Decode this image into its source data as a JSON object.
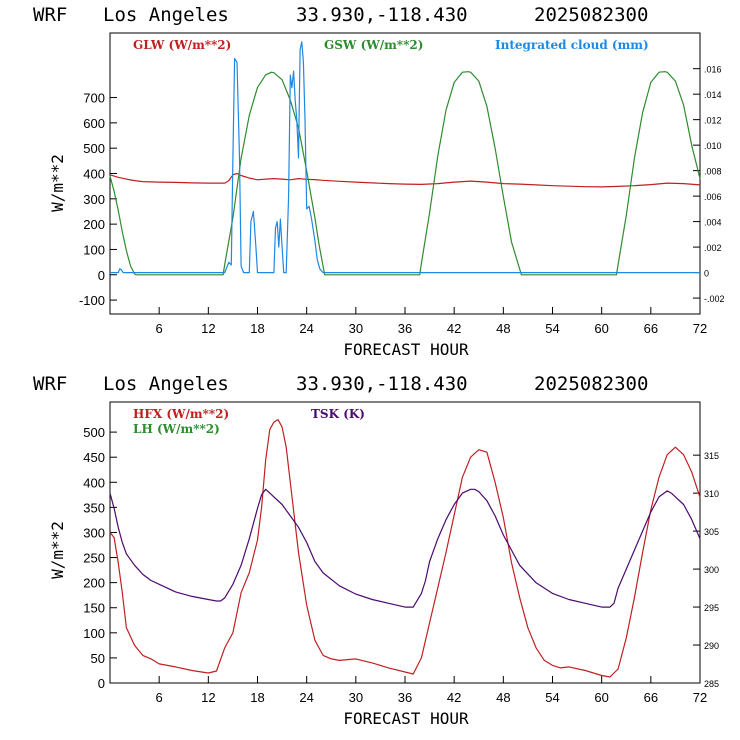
{
  "top": {
    "title_model": "WRF",
    "title_site": "Los Angeles",
    "title_coords": "33.930,-118.430",
    "title_date": "2025082300"
  },
  "bottom": {
    "title_model": "WRF",
    "title_site": "Los Angeles",
    "title_coords": "33.930,-118.430",
    "title_date": "2025082300"
  },
  "chart_data": [
    {
      "type": "line",
      "xlabel": "FORECAST HOUR",
      "ylabel": "W/m**2",
      "xlim": [
        0,
        72
      ],
      "ylim": [
        -155,
        955
      ],
      "xticks": [
        6,
        12,
        18,
        24,
        30,
        36,
        42,
        48,
        54,
        60,
        66,
        72
      ],
      "yticks": [
        -100,
        0,
        100,
        200,
        300,
        400,
        500,
        600,
        700
      ],
      "y2lim": [
        -0.00325,
        0.0188
      ],
      "y2ticks": [
        ".016",
        ".014",
        ".012",
        ".010",
        ".008",
        ".006",
        ".004",
        ".002",
        "0",
        "-.002"
      ],
      "y2tick_values": [
        0.016,
        0.014,
        0.012,
        0.01,
        0.008,
        0.006,
        0.004,
        0.002,
        0,
        -0.002
      ],
      "grid": false,
      "legend": "top",
      "series": [
        {
          "name": "GLW (W/m**2)",
          "color": "#c02020",
          "axis": "left",
          "x": [
            0,
            1,
            2,
            3,
            4,
            6,
            8,
            10,
            12,
            14,
            14.5,
            15,
            15.5,
            16,
            17,
            18,
            19,
            20,
            21,
            22,
            23,
            24,
            25,
            26,
            28,
            30,
            32,
            34,
            36,
            38,
            40,
            42,
            44,
            46,
            48,
            50,
            52,
            54,
            56,
            58,
            60,
            62,
            64,
            66,
            68,
            70,
            72
          ],
          "y": [
            395,
            385,
            378,
            372,
            368,
            366,
            365,
            363,
            362,
            362,
            372,
            395,
            400,
            392,
            382,
            375,
            378,
            380,
            378,
            375,
            380,
            377,
            376,
            373,
            369,
            366,
            363,
            360,
            358,
            357,
            360,
            366,
            370,
            366,
            360,
            358,
            355,
            352,
            350,
            348,
            347,
            349,
            352,
            356,
            362,
            360,
            355
          ]
        },
        {
          "name": "GSW (W/m**2)",
          "color": "#2e8b2e",
          "axis": "left",
          "x": [
            0,
            0.5,
            1,
            1.5,
            2,
            2.5,
            3,
            3.2,
            13.8,
            14,
            15,
            16,
            17,
            18,
            19,
            19.7,
            20,
            21,
            22,
            23,
            24,
            25,
            25.5,
            26.2,
            37.8,
            38,
            39,
            40,
            41,
            42,
            43,
            43.7,
            44,
            45,
            46,
            47,
            48,
            49,
            50.2,
            61.8,
            62,
            63,
            64,
            65,
            66,
            67,
            67.7,
            68,
            69,
            70,
            71,
            72
          ],
          "y": [
            390,
            330,
            255,
            170,
            95,
            35,
            3,
            0,
            0,
            40,
            225,
            460,
            630,
            740,
            790,
            800,
            798,
            770,
            690,
            580,
            410,
            225,
            120,
            0,
            0,
            45,
            245,
            470,
            650,
            760,
            800,
            802,
            800,
            765,
            665,
            500,
            310,
            130,
            0,
            0,
            40,
            235,
            460,
            640,
            760,
            800,
            802,
            800,
            765,
            670,
            510,
            380
          ]
        },
        {
          "name": "Integrated cloud (mm)",
          "color": "#1e88e5",
          "axis": "right",
          "x": [
            0,
            1,
            1.2,
            1.4,
            1.6,
            14,
            14.5,
            14.8,
            15,
            15.2,
            15.5,
            15.8,
            16,
            16.3,
            16.6,
            17,
            17.2,
            17.5,
            17.8,
            18,
            18.5,
            19,
            19.5,
            20,
            20.2,
            20.4,
            20.6,
            20.8,
            21,
            21.2,
            21.5,
            21.8,
            22,
            22.2,
            22.4,
            22.6,
            22.8,
            23,
            23.2,
            23.4,
            23.6,
            23.8,
            24,
            24.3,
            24.6,
            25,
            25.3,
            25.6,
            26,
            27,
            72
          ],
          "y": [
            0,
            0,
            0.0003,
            0.0002,
            0,
            0,
            0.0008,
            0.0006,
            0.009,
            0.0168,
            0.0165,
            0.009,
            0.0005,
            0,
            0,
            0,
            0.004,
            0.0048,
            0.002,
            0,
            0,
            0,
            0,
            0,
            0.0035,
            0.004,
            0.002,
            0.0042,
            0.002,
            0,
            0,
            0.006,
            0.0155,
            0.0145,
            0.0158,
            0.0135,
            0.012,
            0.009,
            0.0175,
            0.0181,
            0.0165,
            0.012,
            0.005,
            0.0052,
            0.0042,
            0.0025,
            0.001,
            0.0003,
            0,
            0,
            0
          ]
        }
      ]
    },
    {
      "type": "line",
      "xlabel": "FORECAST HOUR",
      "ylabel": "W/m**2",
      "xlim": [
        0,
        72
      ],
      "ylim": [
        0,
        560
      ],
      "xticks": [
        6,
        12,
        18,
        24,
        30,
        36,
        42,
        48,
        54,
        60,
        66,
        72
      ],
      "yticks": [
        0,
        50,
        100,
        150,
        200,
        250,
        300,
        350,
        400,
        450,
        500
      ],
      "y2lim": [
        285,
        322
      ],
      "y2ticks": [
        285,
        290,
        295,
        300,
        305,
        310,
        315
      ],
      "grid": false,
      "legend": "top-left",
      "series": [
        {
          "name": "HFX (W/m**2)",
          "color": "#c02020",
          "axis": "left",
          "x": [
            0,
            0.5,
            1,
            1.5,
            2,
            3,
            4,
            5,
            6,
            8,
            10,
            12,
            13,
            14,
            15,
            16,
            17,
            18,
            18.5,
            19,
            19.5,
            20,
            20.5,
            21,
            21.5,
            22,
            23,
            24,
            25,
            26,
            27,
            28,
            30,
            32,
            34,
            36,
            37,
            38,
            39,
            40,
            41,
            42,
            43,
            44,
            45,
            46,
            47,
            48,
            49,
            50,
            51,
            52,
            53,
            54,
            55,
            56,
            58,
            60,
            61,
            62,
            63,
            64,
            65,
            66,
            67,
            68,
            69,
            70,
            71,
            72
          ],
          "y": [
            300,
            290,
            240,
            180,
            110,
            75,
            55,
            48,
            38,
            32,
            25,
            20,
            24,
            70,
            100,
            180,
            220,
            285,
            350,
            445,
            505,
            520,
            525,
            510,
            470,
            400,
            260,
            155,
            85,
            55,
            48,
            45,
            48,
            40,
            30,
            22,
            18,
            50,
            120,
            190,
            260,
            335,
            410,
            450,
            465,
            460,
            400,
            330,
            240,
            170,
            110,
            70,
            45,
            35,
            30,
            32,
            25,
            15,
            12,
            28,
            90,
            170,
            260,
            345,
            410,
            455,
            470,
            455,
            420,
            370
          ]
        },
        {
          "name": "LH  (W/m**2)",
          "color": "#2e8b2e",
          "axis": "left",
          "x": [
            0,
            72
          ],
          "y": [
            null,
            null
          ]
        },
        {
          "name": "TSK (K)",
          "color": "#4b0a6e",
          "axis": "right",
          "x": [
            0,
            0.5,
            1,
            1.5,
            2,
            3,
            4,
            5,
            6,
            8,
            10,
            12,
            13,
            13.5,
            14,
            15,
            16,
            17,
            18,
            18.5,
            19,
            19.5,
            20,
            21,
            22,
            23,
            24,
            25,
            26,
            28,
            30,
            32,
            34,
            36,
            37,
            38,
            38.5,
            39,
            40,
            41,
            42,
            43,
            44,
            44.5,
            45,
            46,
            47,
            48,
            49,
            50,
            52,
            54,
            56,
            58,
            60,
            61,
            61.5,
            62,
            63,
            64,
            65,
            66,
            67,
            68,
            68.5,
            69,
            70,
            71,
            72
          ],
          "y": [
            310,
            308,
            305.5,
            303.5,
            302,
            300.5,
            299.3,
            298.5,
            298,
            297,
            296.4,
            296,
            295.8,
            295.8,
            296.2,
            298,
            300.5,
            304,
            308,
            309.8,
            310.5,
            310,
            309.5,
            308.5,
            307,
            305.5,
            303.5,
            301,
            299.5,
            297.8,
            296.7,
            296,
            295.5,
            295,
            295,
            296.8,
            298.5,
            301,
            304,
            306.5,
            308.5,
            310,
            310.5,
            310.5,
            310.2,
            309,
            307,
            304.5,
            302.5,
            300.5,
            298.2,
            296.8,
            296,
            295.5,
            295,
            295,
            295.5,
            297.5,
            300,
            302.5,
            305,
            307.5,
            309.5,
            310.3,
            310,
            309.5,
            308.5,
            306.5,
            304
          ]
        }
      ]
    }
  ]
}
